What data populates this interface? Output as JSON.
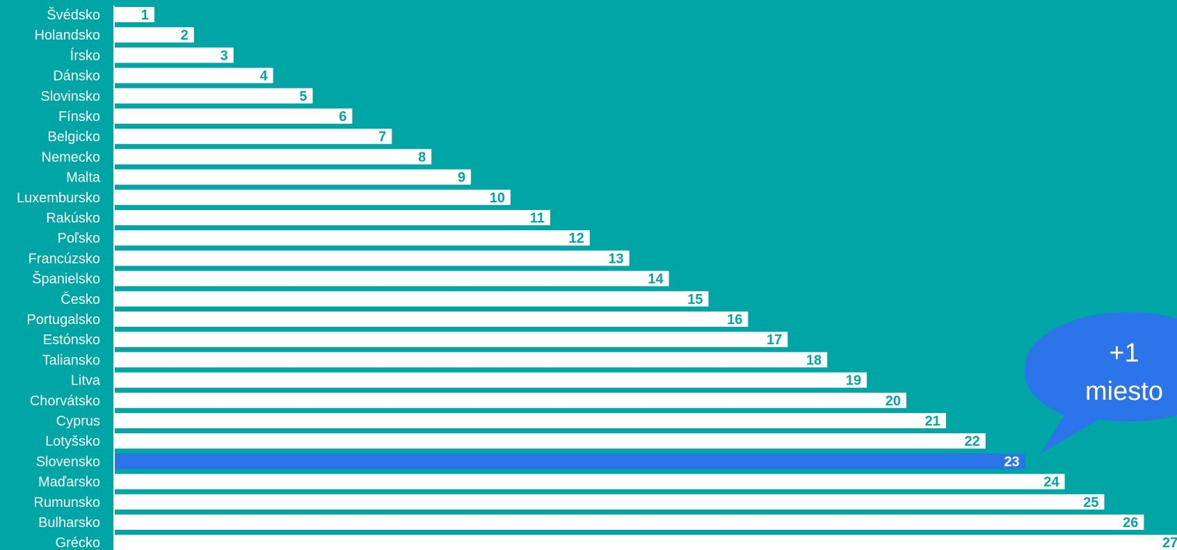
{
  "chart_data": {
    "type": "bar",
    "orientation": "horizontal",
    "categories": [
      "Švédsko",
      "Holandsko",
      "Írsko",
      "Dánsko",
      "Slovinsko",
      "Fínsko",
      "Belgicko",
      "Nemecko",
      "Malta",
      "Luxembursko",
      "Rakúsko",
      "Poľsko",
      "Francúzsko",
      "Španielsko",
      "Česko",
      "Portugalsko",
      "Estónsko",
      "Taliansko",
      "Litva",
      "Chorvátsko",
      "Cyprus",
      "Lotyšsko",
      "Slovensko",
      "Maďarsko",
      "Rumunsko",
      "Bulharsko",
      "Grécko"
    ],
    "values": [
      1,
      2,
      3,
      4,
      5,
      6,
      7,
      8,
      9,
      10,
      11,
      12,
      13,
      14,
      15,
      16,
      17,
      18,
      19,
      20,
      21,
      22,
      23,
      24,
      25,
      26,
      27
    ],
    "highlight": "Slovensko",
    "xlim": [
      0,
      27
    ],
    "grid": false,
    "annotation": {
      "line1": "+1",
      "line2": "miesto",
      "target": "Slovensko"
    }
  },
  "colors": {
    "background": "#00a5a6",
    "bar": "#ffffff",
    "highlight_bar": "#2b74ea",
    "value_label": "#00a5a6",
    "highlight_value_label": "#ffffff",
    "bubble": "#2b74ea",
    "axis_line": "#ffffff"
  }
}
